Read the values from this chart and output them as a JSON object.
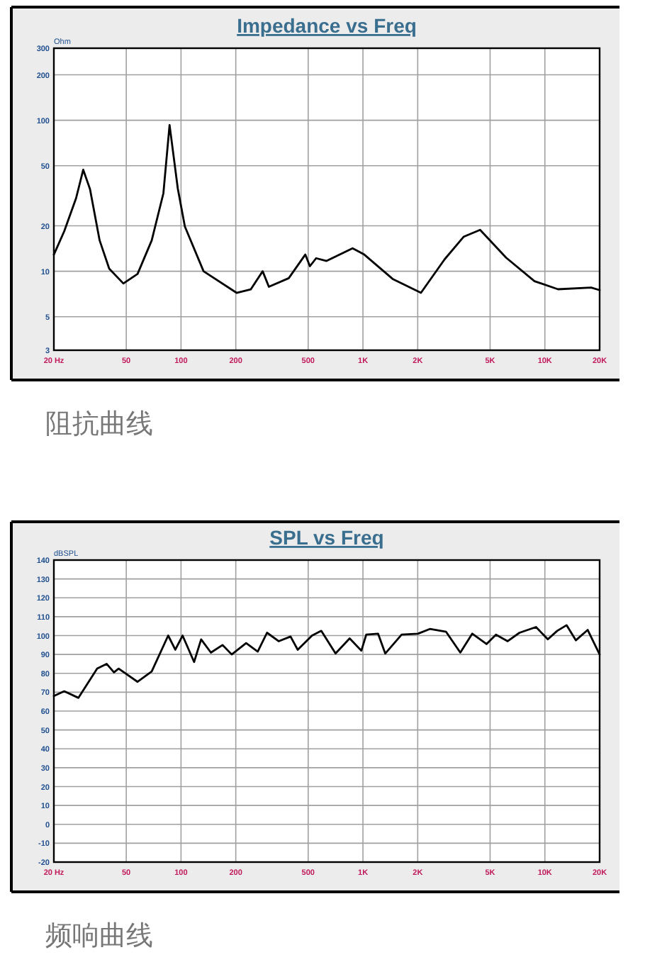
{
  "chart_data": [
    {
      "type": "line",
      "title": "Impedance vs Freq",
      "ylabel": "Ohm",
      "annotations": [
        "阻抗曲线"
      ],
      "log": "xy",
      "grid": true,
      "color": "#000000",
      "x": [
        20,
        22.8,
        26.5,
        29,
        31.6,
        35.7,
        40.3,
        48.2,
        57.7,
        69,
        80,
        86.5,
        96,
        105,
        133,
        202,
        242,
        281,
        304,
        391,
        482,
        511,
        553,
        631,
        877,
        1017,
        1456,
        2084,
        2812,
        3574,
        4406,
        6125,
        8770,
        11815,
        17960,
        20000
      ],
      "values": [
        12.9,
        18.4,
        30.5,
        47,
        35,
        16,
        10.4,
        8.3,
        9.6,
        16,
        32.8,
        93,
        35.3,
        19.8,
        10,
        7.2,
        7.6,
        10,
        7.9,
        9,
        12.9,
        10.8,
        12.2,
        11.7,
        14.2,
        12.9,
        8.9,
        7.2,
        12,
        16.9,
        18.8,
        12.3,
        8.6,
        7.6,
        7.8,
        7.5
      ],
      "xlim": [
        20,
        20000
      ],
      "ylim": [
        3,
        300
      ],
      "xticks": [
        {
          "value": 20,
          "label": "20 Hz"
        },
        50,
        100,
        200,
        500,
        {
          "value": 1000,
          "label": "1K"
        },
        {
          "value": 2000,
          "label": "2K"
        },
        {
          "value": 5000,
          "label": "5K"
        },
        {
          "value": 10000,
          "label": "10K"
        },
        {
          "value": 20000,
          "label": "20K"
        }
      ],
      "yticks": [
        3,
        5,
        10,
        20,
        50,
        100,
        200,
        300
      ]
    },
    {
      "type": "line",
      "title": "SPL vs Freq",
      "ylabel": "dBSPL",
      "annotations": [
        "频响曲线"
      ],
      "log": "x",
      "grid": true,
      "color": "#000000",
      "x": [
        20,
        22.8,
        27.3,
        34.6,
        39,
        42.8,
        45.4,
        57.7,
        69,
        85,
        93,
        102,
        118,
        129,
        146,
        169,
        190,
        228,
        264,
        297,
        344,
        400,
        438,
        525,
        590,
        707,
        845,
        980,
        1043,
        1211,
        1326,
        1632,
        2005,
        2332,
        2865,
        3430,
        3991,
        4778,
        5386,
        6246,
        7253,
        8944,
        10380,
        11690,
        13160,
        14810,
        17200,
        20000
      ],
      "values": [
        68,
        70.5,
        67,
        82.5,
        85,
        80.5,
        82.5,
        75.5,
        81,
        100,
        92.5,
        100,
        86,
        98,
        91,
        95,
        90,
        96,
        91.5,
        101.5,
        97,
        99.5,
        92.5,
        100,
        102.5,
        90.5,
        98.5,
        92,
        100.5,
        101,
        90.5,
        100.5,
        101,
        103.5,
        102,
        91,
        101,
        95.5,
        100.5,
        97,
        101.5,
        104.5,
        98,
        102.5,
        105.5,
        97.5,
        103,
        90
      ],
      "xlim": [
        20,
        20000
      ],
      "ylim": [
        -20,
        140
      ],
      "xticks": [
        {
          "value": 20,
          "label": "20 Hz"
        },
        50,
        100,
        200,
        500,
        {
          "value": 1000,
          "label": "1K"
        },
        {
          "value": 2000,
          "label": "2K"
        },
        {
          "value": 5000,
          "label": "5K"
        },
        {
          "value": 10000,
          "label": "10K"
        },
        {
          "value": 20000,
          "label": "20K"
        }
      ],
      "yticks": [
        -20,
        -10,
        0,
        10,
        20,
        30,
        40,
        50,
        60,
        70,
        80,
        90,
        100,
        110,
        120,
        130,
        140
      ]
    }
  ]
}
